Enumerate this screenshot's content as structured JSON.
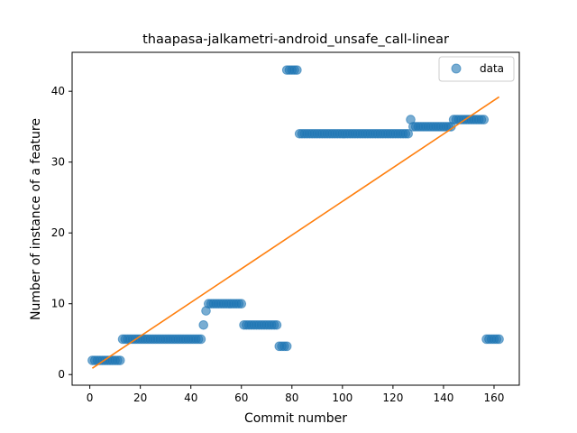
{
  "chart_data": {
    "type": "scatter",
    "title": "thaapasa-jalkametri-android_unsafe_call-linear",
    "xlabel": "Commit number",
    "ylabel": "Number of instance of a feature",
    "xlim": [
      -7,
      170
    ],
    "ylim": [
      -1.5,
      45.5
    ],
    "xticks": [
      0,
      20,
      40,
      60,
      80,
      100,
      120,
      140,
      160
    ],
    "yticks": [
      0,
      10,
      20,
      30,
      40
    ],
    "legend": {
      "position": "top-right",
      "entries": [
        "data"
      ]
    },
    "grid": false,
    "colors": {
      "data": "#1f77b4",
      "fit": "#ff7f0e"
    },
    "series": [
      {
        "name": "data",
        "kind": "scatter",
        "segments": [
          {
            "x_from": 1,
            "x_to": 12,
            "y": 2
          },
          {
            "x_from": 13,
            "x_to": 44,
            "y": 5
          },
          {
            "x_from": 45,
            "x_to": 45,
            "y": 7
          },
          {
            "x_from": 46,
            "x_to": 46,
            "y": 9
          },
          {
            "x_from": 47,
            "x_to": 60,
            "y": 10
          },
          {
            "x_from": 61,
            "x_to": 74,
            "y": 7
          },
          {
            "x_from": 75,
            "x_to": 78,
            "y": 4
          },
          {
            "x_from": 78,
            "x_to": 82,
            "y": 43
          },
          {
            "x_from": 83,
            "x_to": 126,
            "y": 34
          },
          {
            "x_from": 127,
            "x_to": 127,
            "y": 36
          },
          {
            "x_from": 128,
            "x_to": 143,
            "y": 35
          },
          {
            "x_from": 144,
            "x_to": 156,
            "y": 36
          },
          {
            "x_from": 157,
            "x_to": 162,
            "y": 5
          }
        ]
      },
      {
        "kind": "line",
        "points": [
          [
            1,
            0.9
          ],
          [
            162,
            39.2
          ]
        ]
      }
    ]
  }
}
